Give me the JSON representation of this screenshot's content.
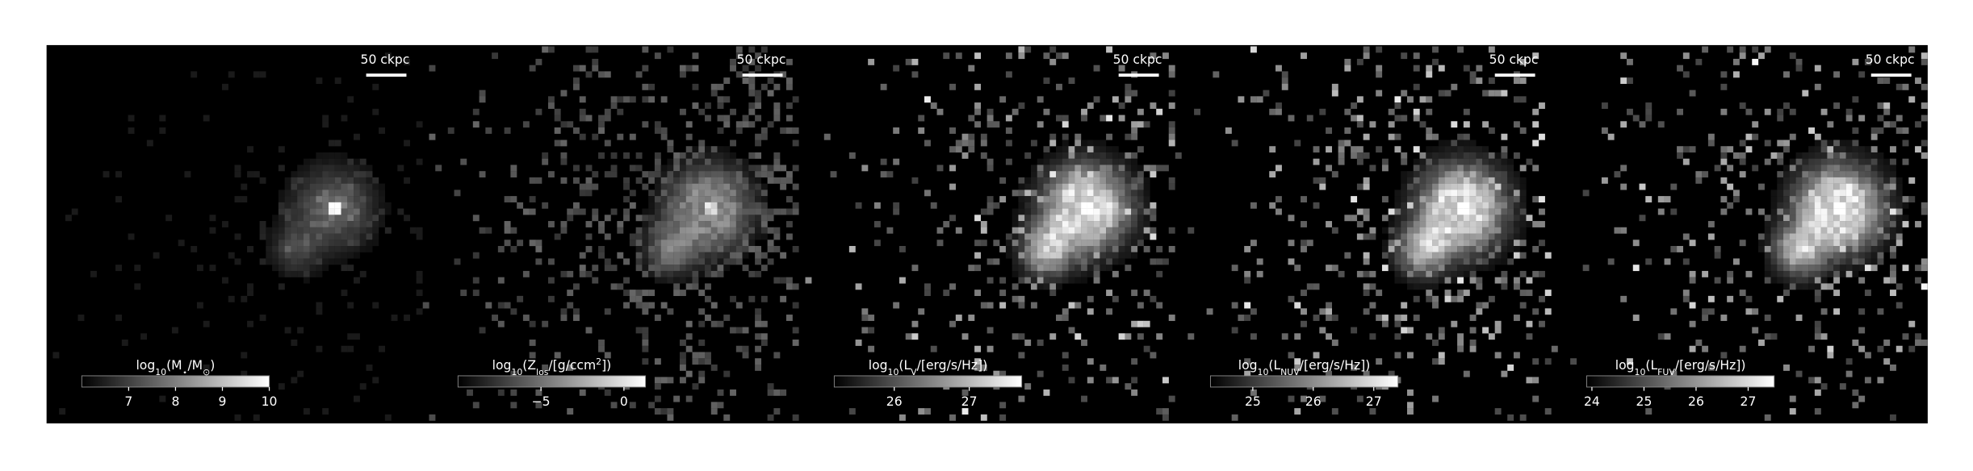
{
  "chart_data": [
    {
      "type": "image",
      "scale_bar": "50 ckpc",
      "colorbar": {
        "label": [
          {
            "text": "log"
          },
          {
            "text": "10",
            "sub": true
          },
          {
            "text": "(M"
          },
          {
            "text": "⋆",
            "sub": true
          },
          {
            "text": "/M"
          },
          {
            "text": "⊙",
            "sub": true
          },
          {
            "text": ")"
          }
        ],
        "lim": [
          6,
          10
        ],
        "ticks": [
          7,
          8,
          9,
          10
        ]
      }
    },
    {
      "type": "image",
      "scale_bar": "50 ckpc",
      "colorbar": {
        "label": [
          {
            "text": "log"
          },
          {
            "text": "10",
            "sub": true
          },
          {
            "text": "(Z"
          },
          {
            "text": "los",
            "sub": true
          },
          {
            "text": "/[g/ccm"
          },
          {
            "text": "2",
            "sup": true
          },
          {
            "text": "])"
          }
        ],
        "lim": [
          -10,
          1.3
        ],
        "ticks": [
          {
            "value": -5,
            "label": "−5"
          },
          0
        ]
      }
    },
    {
      "type": "image",
      "scale_bar": "50 ckpc",
      "colorbar": {
        "label": [
          {
            "text": "log"
          },
          {
            "text": "10",
            "sub": true
          },
          {
            "text": "(L"
          },
          {
            "text": "V",
            "sub": true
          },
          {
            "text": "/[erg/s/Hz])"
          }
        ],
        "lim": [
          25.2,
          27.7
        ],
        "ticks": [
          26,
          27
        ]
      }
    },
    {
      "type": "image",
      "scale_bar": "50 ckpc",
      "colorbar": {
        "label": [
          {
            "text": "log"
          },
          {
            "text": "10",
            "sub": true
          },
          {
            "text": "(L"
          },
          {
            "text": "NUV",
            "sub": true
          },
          {
            "text": "/[erg/s/Hz])"
          }
        ],
        "lim": [
          24.3,
          27.4
        ],
        "ticks": [
          25,
          26,
          27
        ]
      }
    },
    {
      "type": "image",
      "scale_bar": "50 ckpc",
      "colorbar": {
        "label": [
          {
            "text": "log"
          },
          {
            "text": "10",
            "sub": true
          },
          {
            "text": "(L"
          },
          {
            "text": "FUV",
            "sub": true
          },
          {
            "text": "/[erg/s/Hz])"
          }
        ],
        "lim": [
          23.9,
          27.5
        ],
        "ticks": [
          24,
          25,
          26,
          27
        ]
      }
    }
  ]
}
